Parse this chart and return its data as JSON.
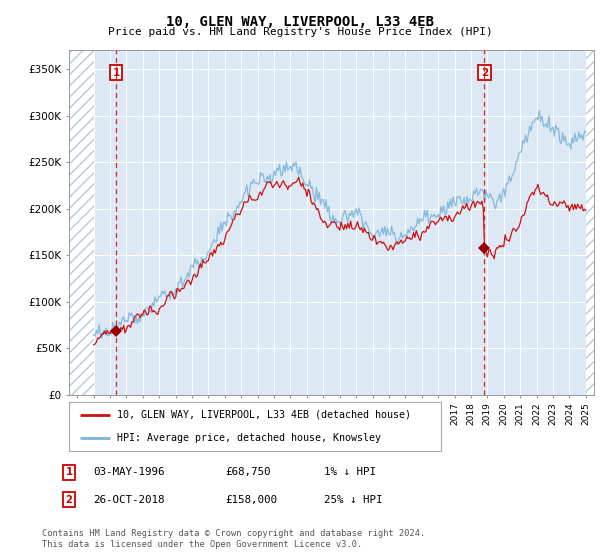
{
  "title": "10, GLEN WAY, LIVERPOOL, L33 4EB",
  "subtitle": "Price paid vs. HM Land Registry's House Price Index (HPI)",
  "ylim": [
    0,
    370000
  ],
  "yticks": [
    0,
    50000,
    100000,
    150000,
    200000,
    250000,
    300000,
    350000
  ],
  "ytick_labels": [
    "£0",
    "£50K",
    "£100K",
    "£150K",
    "£200K",
    "£250K",
    "£300K",
    "£350K"
  ],
  "background_color": "#ffffff",
  "plot_bg_color": "#dce9f5",
  "hatch_color": "#b8c8dc",
  "grid_color": "#ffffff",
  "hpi_color": "#7ab4d8",
  "price_color": "#cc1111",
  "transaction1_date": 1996.37,
  "transaction1_price": 68750,
  "transaction2_date": 2018.82,
  "transaction2_price": 158000,
  "legend_line1": "10, GLEN WAY, LIVERPOOL, L33 4EB (detached house)",
  "legend_line2": "HPI: Average price, detached house, Knowsley",
  "table_row1": [
    "1",
    "03-MAY-1996",
    "£68,750",
    "1% ↓ HPI"
  ],
  "table_row2": [
    "2",
    "26-OCT-2018",
    "£158,000",
    "25% ↓ HPI"
  ],
  "footer": "Contains HM Land Registry data © Crown copyright and database right 2024.\nThis data is licensed under the Open Government Licence v3.0.",
  "xmin": 1993.5,
  "xmax": 2025.5,
  "data_xstart": 1995.0,
  "data_xend": 2025.0
}
